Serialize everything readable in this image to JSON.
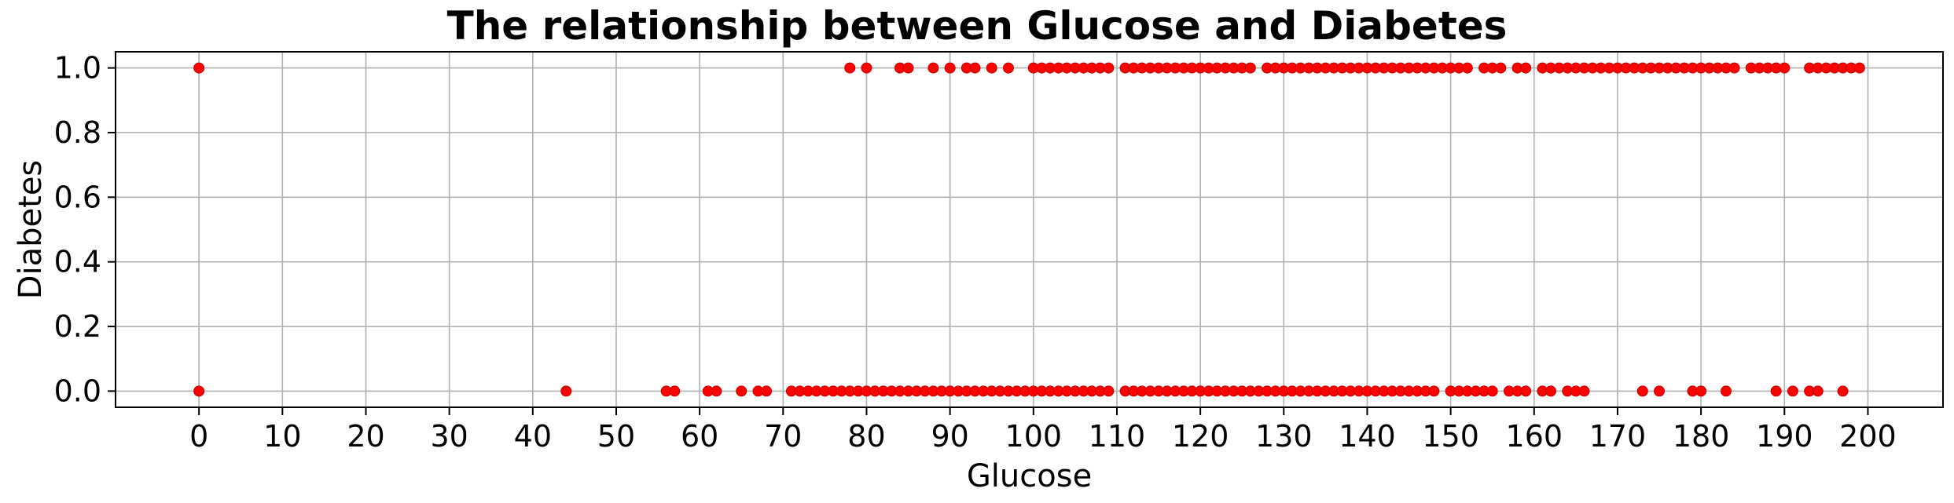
{
  "chart_data": {
    "type": "scatter",
    "title": "The relationship between Glucose and Diabetes",
    "xlabel": "Glucose",
    "ylabel": "Diabetes",
    "xlim": [
      -10,
      209
    ],
    "ylim": [
      -0.05,
      1.05
    ],
    "xticks": [
      0,
      10,
      20,
      30,
      40,
      50,
      60,
      70,
      80,
      90,
      100,
      110,
      120,
      130,
      140,
      150,
      160,
      170,
      180,
      190,
      200
    ],
    "yticks": [
      0.0,
      0.2,
      0.4,
      0.6,
      0.8,
      1.0
    ],
    "ytick_labels": [
      "0.0",
      "0.2",
      "0.4",
      "0.6",
      "0.8",
      "1.0"
    ],
    "grid": true,
    "marker_color": "#ff0000",
    "series": [
      {
        "y": 1.0,
        "x": [
          0,
          78,
          80,
          84,
          85,
          88,
          90,
          92,
          93,
          95,
          97,
          100,
          101,
          102,
          103,
          104,
          105,
          106,
          107,
          108,
          109,
          111,
          112,
          113,
          114,
          115,
          116,
          117,
          118,
          119,
          120,
          121,
          122,
          123,
          124,
          125,
          126,
          128,
          129,
          130,
          131,
          132,
          133,
          134,
          135,
          136,
          137,
          138,
          139,
          140,
          141,
          142,
          143,
          144,
          145,
          146,
          147,
          148,
          149,
          150,
          151,
          152,
          154,
          155,
          156,
          158,
          159,
          161,
          162,
          163,
          164,
          165,
          166,
          167,
          168,
          169,
          170,
          171,
          172,
          173,
          174,
          175,
          176,
          177,
          178,
          179,
          180,
          181,
          182,
          183,
          184,
          186,
          187,
          188,
          189,
          190,
          193,
          194,
          195,
          196,
          197,
          198,
          199
        ]
      },
      {
        "y": 0.0,
        "x": [
          0,
          44,
          56,
          57,
          61,
          62,
          65,
          67,
          68,
          71,
          72,
          73,
          74,
          75,
          76,
          77,
          78,
          79,
          80,
          81,
          82,
          83,
          84,
          85,
          86,
          87,
          88,
          89,
          90,
          91,
          92,
          93,
          94,
          95,
          96,
          97,
          98,
          99,
          100,
          101,
          102,
          103,
          104,
          105,
          106,
          107,
          108,
          109,
          111,
          112,
          113,
          114,
          115,
          116,
          117,
          118,
          119,
          120,
          121,
          122,
          123,
          124,
          125,
          126,
          127,
          128,
          129,
          130,
          131,
          132,
          133,
          134,
          135,
          136,
          137,
          138,
          139,
          140,
          141,
          142,
          143,
          144,
          145,
          146,
          147,
          148,
          150,
          151,
          152,
          153,
          154,
          155,
          157,
          158,
          159,
          161,
          162,
          164,
          165,
          166,
          173,
          175,
          179,
          180,
          183,
          189,
          191,
          193,
          194,
          197
        ]
      }
    ]
  }
}
